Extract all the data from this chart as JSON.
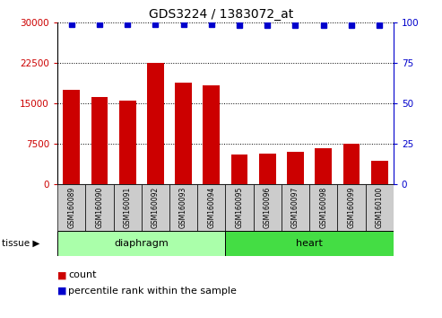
{
  "title": "GDS3224 / 1383072_at",
  "samples": [
    "GSM160089",
    "GSM160090",
    "GSM160091",
    "GSM160092",
    "GSM160093",
    "GSM160094",
    "GSM160095",
    "GSM160096",
    "GSM160097",
    "GSM160098",
    "GSM160099",
    "GSM160100"
  ],
  "counts": [
    17500,
    16200,
    15500,
    22500,
    18800,
    18400,
    5500,
    5700,
    6100,
    6700,
    7500,
    4300
  ],
  "percentiles": [
    99,
    99,
    99,
    99,
    99,
    99,
    98,
    98,
    98,
    98,
    98,
    98
  ],
  "groups": [
    {
      "name": "diaphragm",
      "start": 0,
      "end": 5,
      "color": "#aaffaa"
    },
    {
      "name": "heart",
      "start": 6,
      "end": 11,
      "color": "#44dd44"
    }
  ],
  "bar_color": "#cc0000",
  "percentile_color": "#0000cc",
  "left_axis_color": "#cc0000",
  "right_axis_color": "#0000cc",
  "ylim_left": [
    0,
    30000
  ],
  "ylim_right": [
    0,
    100
  ],
  "yticks_left": [
    0,
    7500,
    15000,
    22500,
    30000
  ],
  "yticks_right": [
    0,
    25,
    50,
    75,
    100
  ],
  "grid_values": [
    7500,
    15000,
    22500,
    30000
  ],
  "legend_count_label": "count",
  "legend_percentile_label": "percentile rank within the sample",
  "tissue_label": "tissue",
  "tick_label_bg": "#cccccc"
}
